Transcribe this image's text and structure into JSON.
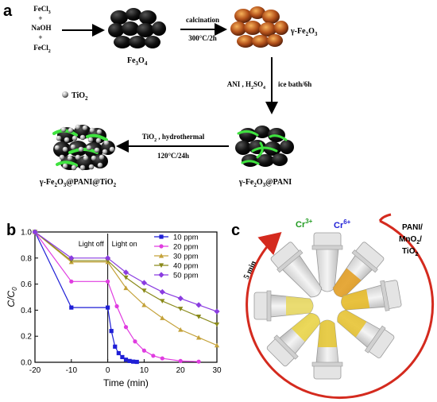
{
  "panel_a": {
    "label": "a",
    "reagents": [
      "FeCl",
      "+",
      "NaOH",
      "+",
      "FeCl"
    ],
    "reagent_subs": [
      "3",
      "2"
    ],
    "fe3o4": {
      "base": "Fe",
      "s1": "3",
      "mid": "O",
      "s2": "4"
    },
    "calcination": {
      "line1": "calcination",
      "line2": "300°C/2h"
    },
    "gamma_fe2o3": {
      "prefix": "γ-Fe",
      "s1": "2",
      "mid": "O",
      "s2": "3"
    },
    "tio2_legend": "TiO",
    "tio2_sub": "2",
    "ani_step": {
      "left": "ANI , H",
      "s1": "2",
      "mid": "SO",
      "s2": "4",
      "right": "ice bath/6h"
    },
    "hydro_step": {
      "line1_a": "TiO",
      "line1_sub": "2",
      "line1_b": " , hydrothermal",
      "line2": "120°C/24h"
    },
    "product_pani": {
      "a": "γ-Fe",
      "s1": "2",
      "b": "O",
      "s2": "3",
      "c": "@PANI"
    },
    "product_final": {
      "a": "γ-Fe",
      "s1": "2",
      "b": "O",
      "s2": "3",
      "c": "@PANI@TiO",
      "s3": "2"
    }
  },
  "panel_b": {
    "label": "b",
    "light_off": "Light off",
    "light_on": "Light on"
  },
  "chart_data": {
    "type": "line",
    "xlabel": "Time (min)",
    "ylabel": "C/C",
    "ylabel_sub": "0",
    "xlim": [
      -20,
      30
    ],
    "ylim": [
      0.0,
      1.0
    ],
    "xticks": [
      "-20",
      "-10",
      "0",
      "10",
      "20",
      "30"
    ],
    "yticks": [
      "0.0",
      "0.2",
      "0.4",
      "0.6",
      "0.8",
      "1.0"
    ],
    "legend_position": "top-right",
    "series": [
      {
        "name": "10 ppm",
        "color": "#1f1fd6",
        "marker": "square",
        "points": [
          [
            -20,
            1.0
          ],
          [
            -10,
            0.42
          ],
          [
            0,
            0.42
          ],
          [
            1,
            0.24
          ],
          [
            2,
            0.12
          ],
          [
            3,
            0.07
          ],
          [
            4,
            0.04
          ],
          [
            5,
            0.02
          ],
          [
            6,
            0.01
          ],
          [
            7,
            0.005
          ],
          [
            8,
            0.003
          ]
        ]
      },
      {
        "name": "20 ppm",
        "color": "#e03ce0",
        "marker": "circle",
        "points": [
          [
            -20,
            1.0
          ],
          [
            -10,
            0.62
          ],
          [
            0,
            0.62
          ],
          [
            2.5,
            0.43
          ],
          [
            5,
            0.27
          ],
          [
            7.5,
            0.16
          ],
          [
            10,
            0.09
          ],
          [
            12.5,
            0.05
          ],
          [
            15,
            0.03
          ],
          [
            20,
            0.01
          ],
          [
            25,
            0.005
          ]
        ]
      },
      {
        "name": "30 ppm",
        "color": "#c4a23a",
        "marker": "triangle-up",
        "points": [
          [
            -20,
            1.0
          ],
          [
            -10,
            0.77
          ],
          [
            0,
            0.77
          ],
          [
            5,
            0.57
          ],
          [
            10,
            0.44
          ],
          [
            15,
            0.34
          ],
          [
            20,
            0.25
          ],
          [
            25,
            0.19
          ],
          [
            30,
            0.13
          ]
        ]
      },
      {
        "name": "40 ppm",
        "color": "#8a8a1a",
        "marker": "triangle-down",
        "points": [
          [
            -20,
            1.0
          ],
          [
            -10,
            0.78
          ],
          [
            0,
            0.78
          ],
          [
            5,
            0.65
          ],
          [
            10,
            0.55
          ],
          [
            15,
            0.47
          ],
          [
            20,
            0.41
          ],
          [
            25,
            0.35
          ],
          [
            30,
            0.29
          ]
        ]
      },
      {
        "name": "50 ppm",
        "color": "#8a3ce0",
        "marker": "diamond",
        "points": [
          [
            -20,
            1.0
          ],
          [
            -10,
            0.8
          ],
          [
            0,
            0.8
          ],
          [
            5,
            0.69
          ],
          [
            10,
            0.61
          ],
          [
            15,
            0.54
          ],
          [
            20,
            0.49
          ],
          [
            25,
            0.44
          ],
          [
            30,
            0.39
          ]
        ]
      }
    ]
  },
  "panel_c": {
    "label": "c",
    "cr3": "Cr",
    "cr3_sup": "3+",
    "cr6": "Cr",
    "cr6_sup": "6+",
    "catalyst": [
      "PANI/",
      "MnO",
      "/",
      "TiO"
    ],
    "catalyst_subs": [
      "2",
      "2"
    ],
    "time": "5 min",
    "ring_color": "#d42a1e"
  }
}
